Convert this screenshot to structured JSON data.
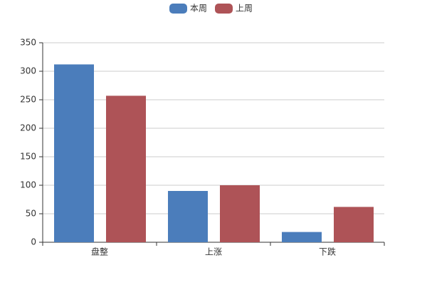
{
  "chart_data": {
    "type": "bar",
    "categories": [
      "盘整",
      "上涨",
      "下跌"
    ],
    "series": [
      {
        "name": "本周",
        "color": "#4b7dbb",
        "values": [
          312,
          90,
          18
        ]
      },
      {
        "name": "上周",
        "color": "#ae5357",
        "values": [
          257,
          100,
          62
        ]
      }
    ],
    "ylim": [
      0,
      350
    ],
    "yticks": [
      0,
      50,
      100,
      150,
      200,
      250,
      300,
      350
    ],
    "grid": true,
    "legend": "top"
  }
}
